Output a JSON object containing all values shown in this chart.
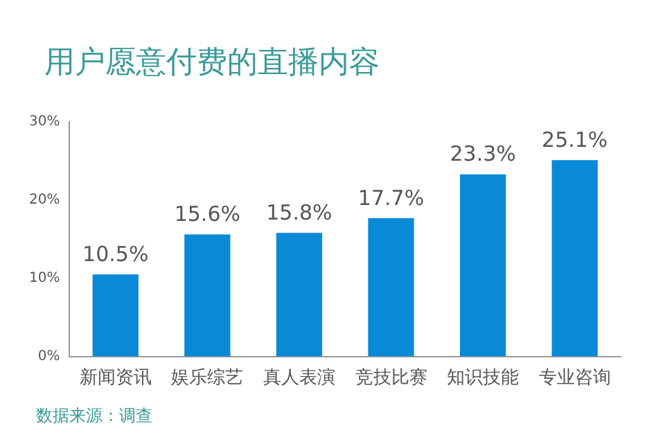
{
  "chart_data": {
    "type": "bar",
    "title": "用户愿意付费的直播内容",
    "categories": [
      "新闻资讯",
      "娱乐综艺",
      "真人表演",
      "竞技比赛",
      "知识技能",
      "专业咨询"
    ],
    "values": [
      10.5,
      15.6,
      15.8,
      17.7,
      23.3,
      25.1
    ],
    "value_labels": [
      "10.5%",
      "15.6%",
      "15.8%",
      "17.7%",
      "23.3%",
      "25.1%"
    ],
    "color": "#0a8ad6",
    "ylim": [
      0,
      30
    ],
    "yticks": [
      {
        "value": 0,
        "label": "0%"
      },
      {
        "value": 10,
        "label": "10%"
      },
      {
        "value": 20,
        "label": "20%"
      },
      {
        "value": 30,
        "label": "30%"
      }
    ],
    "grid": false,
    "legend": false,
    "annotations": [
      "数据来源：调查"
    ]
  }
}
